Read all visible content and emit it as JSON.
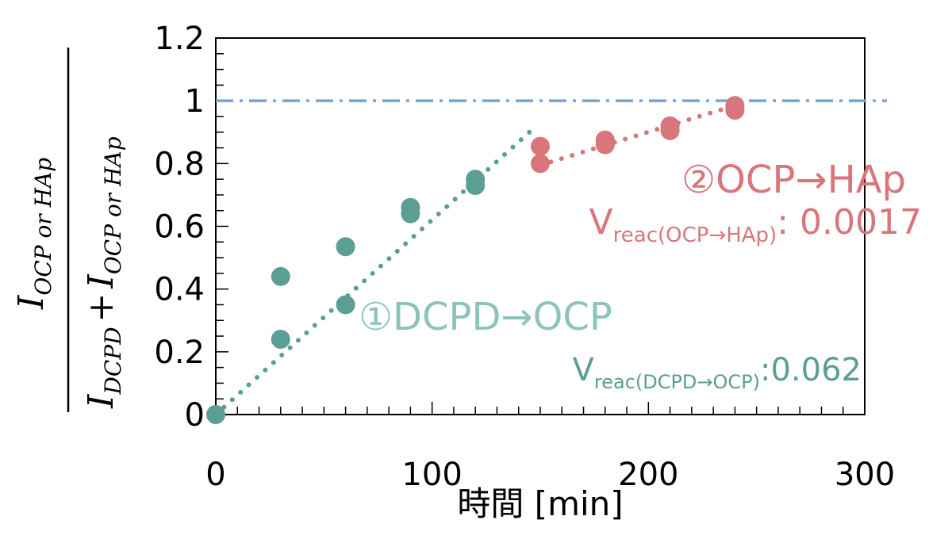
{
  "chart_data": {
    "type": "scatter",
    "xlabel": "時間 [min]",
    "ylabel": {
      "numerator": "I",
      "numerator_sub": "OCP or HAp",
      "denominator_a": "I",
      "denominator_a_sub": "DCPD",
      "plus": "+",
      "denominator_b": "I",
      "denominator_b_sub": "OCP or HAp"
    },
    "xlim": [
      0,
      300
    ],
    "ylim": [
      0,
      1.2
    ],
    "x_ticks": [
      0,
      100,
      200,
      300
    ],
    "x_tick_labels": [
      "0",
      "100",
      "200",
      "300"
    ],
    "y_ticks": [
      0,
      0.2,
      0.4,
      0.6,
      0.8,
      1,
      1.2
    ],
    "y_tick_labels": [
      "0",
      "0.2",
      "0.4",
      "0.6",
      "0.8",
      "1",
      "1.2"
    ],
    "reference_line": {
      "y": 1,
      "style": "dash-dot",
      "color": "#7aa3d6"
    },
    "series": [
      {
        "color": "#5a9e94",
        "points": [
          [
            0,
            0.0
          ],
          [
            30,
            0.44
          ],
          [
            30,
            0.24
          ],
          [
            60,
            0.535
          ],
          [
            60,
            0.35
          ],
          [
            90,
            0.66
          ],
          [
            90,
            0.64
          ],
          [
            120,
            0.75
          ],
          [
            120,
            0.73
          ]
        ],
        "trendline": {
          "x0": 0,
          "y0": 0.0,
          "x1": 145,
          "y1": 0.9
        }
      },
      {
        "color": "#d9767c",
        "points": [
          [
            150,
            0.855
          ],
          [
            150,
            0.8
          ],
          [
            180,
            0.875
          ],
          [
            180,
            0.86
          ],
          [
            210,
            0.92
          ],
          [
            210,
            0.905
          ],
          [
            240,
            0.985
          ],
          [
            240,
            0.97
          ]
        ],
        "trendline": {
          "x0": 150,
          "y0": 0.795,
          "x1": 240,
          "y1": 0.985
        }
      }
    ],
    "annotations": [
      {
        "text": "②OCP→HAp",
        "color": "#d9767c"
      },
      {
        "prefix": "V",
        "sub": "reac(OCP→HAp)",
        "suffix": ": 0.0017",
        "color": "#d9767c"
      },
      {
        "text": "①DCPD→OCP",
        "color": "#8cc4bc"
      },
      {
        "prefix": "V",
        "sub": "reac(DCPD→OCP)",
        "suffix": ":0.062",
        "color": "#5a9e94"
      }
    ]
  }
}
